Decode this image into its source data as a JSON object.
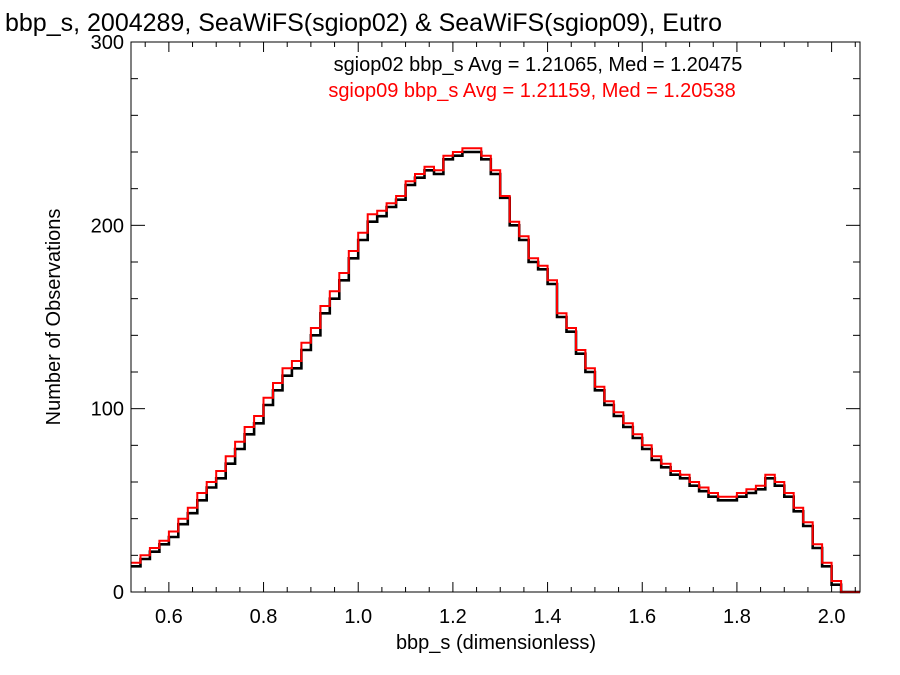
{
  "chart_data": {
    "type": "line",
    "step": true,
    "title": "bbp_s, 2004289, SeaWiFS(sgiop02) & SeaWiFS(sgiop09), Eutro",
    "xlabel": "bbp_s (dimensionless)",
    "ylabel": "Number of Observations",
    "xlim": [
      0.52,
      2.06
    ],
    "ylim": [
      0,
      300
    ],
    "xticks": [
      0.6,
      0.8,
      1.0,
      1.2,
      1.4,
      1.6,
      1.8,
      2.0
    ],
    "xtick_labels": [
      "0.6",
      "0.8",
      "1.0",
      "1.2",
      "1.4",
      "1.6",
      "1.8",
      "2.0"
    ],
    "yticks": [
      0,
      100,
      200,
      300
    ],
    "ytick_labels": [
      "0",
      "100",
      "200",
      "300"
    ],
    "grid": false,
    "annotations": [
      {
        "text": "sgiop02 bbp_s Avg = 1.21065, Med = 1.20475",
        "color": "#000000"
      },
      {
        "text": "sgiop09 bbp_s Avg = 1.21159, Med = 1.20538",
        "color": "#ff0000"
      }
    ],
    "x": [
      0.52,
      0.54,
      0.56,
      0.58,
      0.6,
      0.62,
      0.64,
      0.66,
      0.68,
      0.7,
      0.72,
      0.74,
      0.76,
      0.78,
      0.8,
      0.82,
      0.84,
      0.86,
      0.88,
      0.9,
      0.92,
      0.94,
      0.96,
      0.98,
      1.0,
      1.02,
      1.04,
      1.06,
      1.08,
      1.1,
      1.12,
      1.14,
      1.16,
      1.18,
      1.2,
      1.22,
      1.24,
      1.26,
      1.28,
      1.3,
      1.32,
      1.34,
      1.36,
      1.38,
      1.4,
      1.42,
      1.44,
      1.46,
      1.48,
      1.5,
      1.52,
      1.54,
      1.56,
      1.58,
      1.6,
      1.62,
      1.64,
      1.66,
      1.68,
      1.7,
      1.72,
      1.74,
      1.76,
      1.78,
      1.8,
      1.82,
      1.84,
      1.86,
      1.88,
      1.9,
      1.92,
      1.94,
      1.96,
      1.98,
      2.0,
      2.02,
      2.04,
      2.06
    ],
    "series": [
      {
        "name": "sgiop02",
        "color": "#000000",
        "values": [
          14,
          18,
          22,
          26,
          30,
          37,
          43,
          50,
          57,
          62,
          70,
          78,
          86,
          92,
          102,
          110,
          118,
          122,
          132,
          140,
          152,
          160,
          170,
          182,
          192,
          202,
          205,
          210,
          214,
          222,
          226,
          230,
          228,
          236,
          238,
          240,
          240,
          236,
          228,
          215,
          200,
          192,
          180,
          176,
          168,
          150,
          142,
          130,
          120,
          110,
          102,
          96,
          90,
          84,
          78,
          72,
          68,
          64,
          62,
          58,
          55,
          52,
          50,
          50,
          52,
          54,
          56,
          62,
          58,
          52,
          44,
          36,
          24,
          14,
          4,
          0,
          0,
          0
        ]
      },
      {
        "name": "sgiop09",
        "color": "#ff0000",
        "values": [
          16,
          20,
          24,
          28,
          33,
          40,
          46,
          54,
          60,
          66,
          74,
          82,
          90,
          96,
          106,
          114,
          122,
          126,
          136,
          144,
          156,
          164,
          174,
          186,
          196,
          206,
          208,
          212,
          216,
          224,
          228,
          232,
          230,
          238,
          240,
          242,
          242,
          238,
          230,
          216,
          202,
          194,
          182,
          178,
          170,
          152,
          144,
          132,
          122,
          112,
          104,
          98,
          92,
          86,
          80,
          74,
          70,
          66,
          64,
          60,
          57,
          54,
          52,
          52,
          54,
          56,
          58,
          64,
          60,
          54,
          46,
          38,
          26,
          16,
          6,
          0,
          0,
          0
        ]
      }
    ]
  }
}
